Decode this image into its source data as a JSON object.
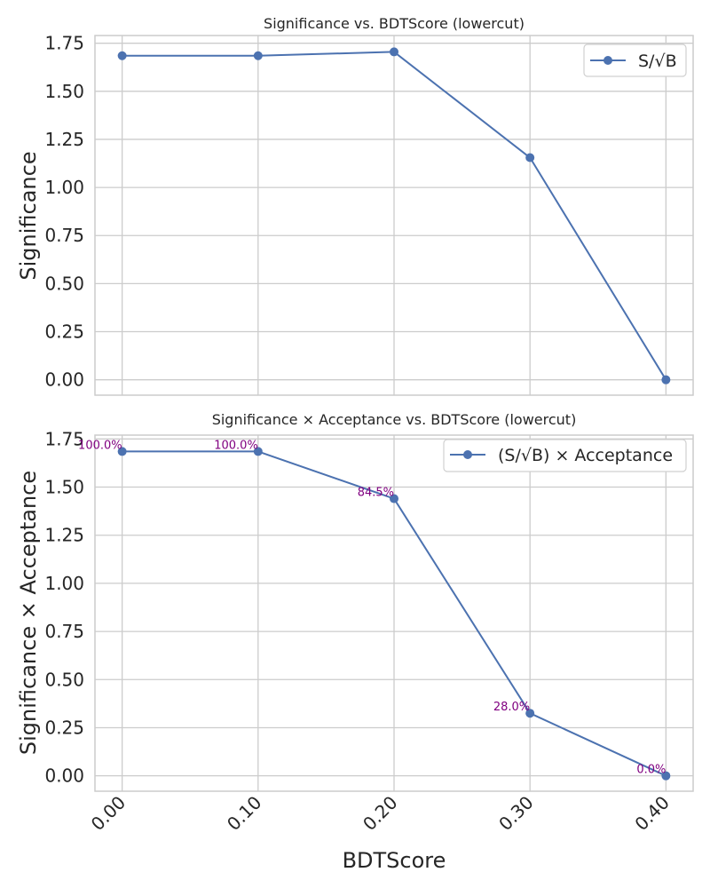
{
  "chart_data": [
    {
      "type": "line",
      "title": "Significance vs. BDTScore (lowercut)",
      "xlabel": "",
      "ylabel": "Significance",
      "x": [
        0.0,
        0.1,
        0.2,
        0.3,
        0.4
      ],
      "xlim": [
        -0.02,
        0.42
      ],
      "ylim": [
        -0.08,
        1.79
      ],
      "yticks": [
        "0.00",
        "0.25",
        "0.50",
        "0.75",
        "1.00",
        "1.25",
        "1.50",
        "1.75"
      ],
      "yticks_values": [
        0,
        0.25,
        0.5,
        0.75,
        1.0,
        1.25,
        1.5,
        1.75
      ],
      "grid": true,
      "legend": "top-right",
      "series": [
        {
          "name": "S/√B",
          "values": [
            1.685,
            1.685,
            1.705,
            1.155,
            0.0
          ],
          "color": "#4c72b0"
        }
      ]
    },
    {
      "type": "line",
      "title": "Significance × Acceptance vs. BDTScore (lowercut)",
      "xlabel": "BDTScore",
      "ylabel": "Significance × Acceptance",
      "x": [
        0.0,
        0.1,
        0.2,
        0.3,
        0.4
      ],
      "xlim": [
        -0.02,
        0.42
      ],
      "ylim": [
        -0.08,
        1.77
      ],
      "xticks": [
        "0.00",
        "0.10",
        "0.20",
        "0.30",
        "0.40"
      ],
      "xticks_values": [
        0.0,
        0.1,
        0.2,
        0.3,
        0.4
      ],
      "yticks": [
        "0.00",
        "0.25",
        "0.50",
        "0.75",
        "1.00",
        "1.25",
        "1.50",
        "1.75"
      ],
      "yticks_values": [
        0,
        0.25,
        0.5,
        0.75,
        1.0,
        1.25,
        1.5,
        1.75
      ],
      "grid": true,
      "legend": "top-right",
      "series": [
        {
          "name": "(S/√B) × Acceptance",
          "values": [
            1.685,
            1.685,
            1.44,
            0.325,
            0.0
          ],
          "color": "#4c72b0"
        }
      ],
      "annotations": [
        "100.0%",
        "100.0%",
        "84.5%",
        "28.0%",
        "0.0%"
      ],
      "annotation_color": "#800080"
    }
  ]
}
